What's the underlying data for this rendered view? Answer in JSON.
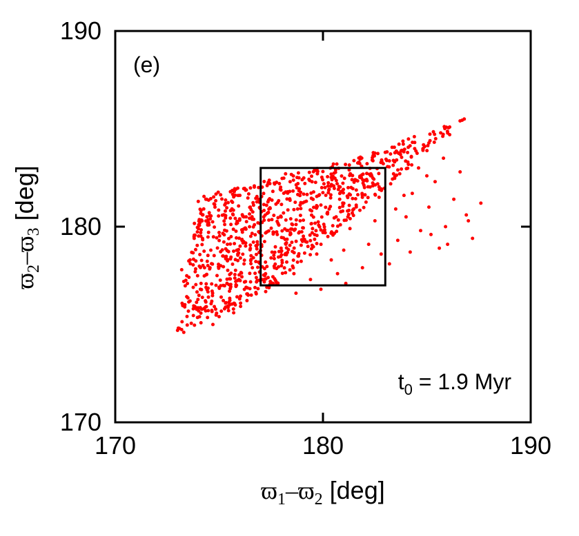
{
  "chart_data": {
    "type": "scatter",
    "panel_label": "(e)",
    "annotation": {
      "base": "t",
      "sub": "0",
      "text": " = 1.9 Myr"
    },
    "xlabel": {
      "a": "ϖ",
      "sa": "1",
      "dash": "–",
      "b": "ϖ",
      "sb": "2",
      "unit": " [deg]"
    },
    "ylabel": {
      "a": "ϖ",
      "sa": "2",
      "dash": "–",
      "b": "ϖ",
      "sb": "3",
      "unit": " [deg]"
    },
    "xlim": [
      170,
      190
    ],
    "ylim": [
      170,
      190
    ],
    "xticks": [
      "170",
      "180",
      "190"
    ],
    "yticks": [
      "170",
      "180",
      "190"
    ],
    "grid": false,
    "point_color": "#ff0000",
    "box_color": "#000000",
    "box": {
      "x": [
        177,
        183
      ],
      "y": [
        177,
        183
      ]
    },
    "cloud_corners": [
      [
        173.0,
        174.6
      ],
      [
        177.0,
        176.3
      ],
      [
        186.8,
        185.5
      ],
      [
        182.0,
        183.7
      ],
      [
        174.0,
        181.5
      ]
    ],
    "points": [
      [
        173.0,
        174.7
      ],
      [
        173.3,
        174.6
      ],
      [
        173.2,
        177.8
      ],
      [
        173.6,
        176.2
      ],
      [
        173.3,
        177.2
      ],
      [
        173.8,
        179.4
      ],
      [
        173.6,
        178.3
      ],
      [
        174.0,
        179.9
      ],
      [
        174.2,
        180.6
      ],
      [
        174.4,
        181.4
      ],
      [
        174.1,
        176.8
      ],
      [
        174.3,
        177.9
      ],
      [
        174.7,
        175.0
      ],
      [
        175.0,
        175.4
      ],
      [
        174.9,
        177.5
      ],
      [
        175.2,
        178.5
      ],
      [
        175.0,
        179.7
      ],
      [
        175.3,
        180.8
      ],
      [
        175.6,
        181.3
      ],
      [
        175.1,
        176.4
      ],
      [
        175.5,
        176.0
      ],
      [
        175.8,
        177.2
      ],
      [
        175.9,
        178.6
      ],
      [
        176.1,
        179.3
      ],
      [
        176.3,
        180.5
      ],
      [
        176.0,
        181.6
      ],
      [
        176.4,
        176.5
      ],
      [
        176.6,
        177.9
      ],
      [
        176.8,
        179.0
      ],
      [
        176.7,
        180.1
      ],
      [
        175.7,
        175.6
      ],
      [
        174.5,
        180.2
      ],
      [
        174.8,
        181.0
      ],
      [
        175.4,
        179.1
      ],
      [
        176.2,
        178.1
      ],
      [
        176.5,
        181.0
      ],
      [
        176.9,
        182.0
      ],
      [
        176.3,
        176.9
      ],
      [
        174.6,
        178.8
      ],
      [
        175.2,
        177.0
      ],
      [
        177.2,
        177.5
      ],
      [
        177.5,
        178.4
      ],
      [
        177.8,
        179.6
      ],
      [
        178.1,
        180.7
      ],
      [
        178.4,
        181.8
      ],
      [
        178.2,
        182.7
      ],
      [
        177.6,
        177.1
      ],
      [
        178.0,
        178.0
      ],
      [
        178.5,
        179.2
      ],
      [
        178.9,
        180.3
      ],
      [
        179.2,
        181.3
      ],
      [
        179.0,
        182.4
      ],
      [
        179.4,
        177.3
      ],
      [
        179.7,
        178.6
      ],
      [
        180.0,
        179.7
      ],
      [
        180.3,
        180.9
      ],
      [
        180.1,
        182.0
      ],
      [
        180.5,
        183.2
      ],
      [
        180.7,
        177.6
      ],
      [
        181.0,
        178.8
      ],
      [
        181.3,
        179.9
      ],
      [
        181.6,
        181.1
      ],
      [
        181.4,
        182.4
      ],
      [
        181.9,
        177.9
      ],
      [
        182.2,
        179.1
      ],
      [
        182.5,
        180.3
      ],
      [
        182.7,
        181.5
      ],
      [
        182.3,
        182.6
      ],
      [
        177.4,
        180.9
      ],
      [
        177.9,
        182.2
      ],
      [
        178.6,
        177.6
      ],
      [
        179.5,
        179.9
      ],
      [
        180.4,
        178.3
      ],
      [
        181.2,
        180.5
      ],
      [
        182.0,
        182.0
      ],
      [
        182.8,
        178.6
      ],
      [
        177.3,
        176.9
      ],
      [
        178.7,
        176.6
      ],
      [
        179.9,
        176.8
      ],
      [
        181.1,
        177.1
      ],
      [
        183.2,
        178.1
      ],
      [
        183.6,
        179.3
      ],
      [
        184.0,
        180.5
      ],
      [
        184.3,
        181.7
      ],
      [
        184.6,
        183.0
      ],
      [
        184.9,
        184.1
      ],
      [
        183.4,
        182.7
      ],
      [
        183.8,
        183.9
      ],
      [
        184.2,
        178.7
      ],
      [
        184.7,
        179.8
      ],
      [
        185.1,
        181.0
      ],
      [
        185.4,
        182.3
      ],
      [
        185.8,
        183.5
      ],
      [
        186.1,
        184.7
      ],
      [
        185.6,
        178.9
      ],
      [
        185.9,
        180.0
      ],
      [
        186.3,
        181.4
      ],
      [
        186.6,
        182.8
      ],
      [
        186.9,
        180.6
      ],
      [
        187.2,
        179.4
      ],
      [
        187.6,
        181.2
      ],
      [
        186.8,
        185.5
      ],
      [
        183.0,
        183.8
      ],
      [
        183.5,
        180.9
      ],
      [
        184.4,
        184.6
      ],
      [
        185.2,
        179.6
      ],
      [
        186.0,
        179.1
      ],
      [
        187.0,
        180.3
      ],
      [
        183.9,
        181.6
      ],
      [
        185.0,
        182.6
      ]
    ]
  }
}
